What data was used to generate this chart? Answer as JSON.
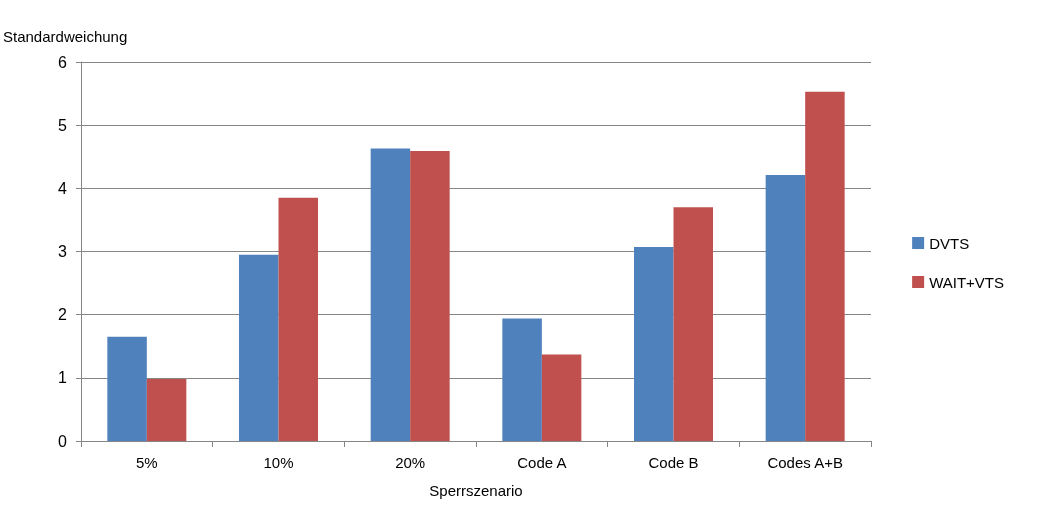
{
  "chart_data": {
    "type": "bar",
    "ylabel": "Standardweichung",
    "xlabel": "Sperrszenario",
    "categories": [
      "5%",
      "10%",
      "20%",
      "Code A",
      "Code B",
      "Codes A+B"
    ],
    "series": [
      {
        "name": "DVTS",
        "color": "#4f81bd",
        "values": [
          1.65,
          2.95,
          4.63,
          1.94,
          3.07,
          4.21
        ]
      },
      {
        "name": "WAIT+VTS",
        "color": "#c0504d",
        "values": [
          0.98,
          3.85,
          4.59,
          1.37,
          3.7,
          5.53
        ]
      }
    ],
    "ylim": [
      0,
      6
    ],
    "yticks": [
      0,
      1,
      2,
      3,
      4,
      5,
      6
    ],
    "grid": "y",
    "legend": "right"
  }
}
